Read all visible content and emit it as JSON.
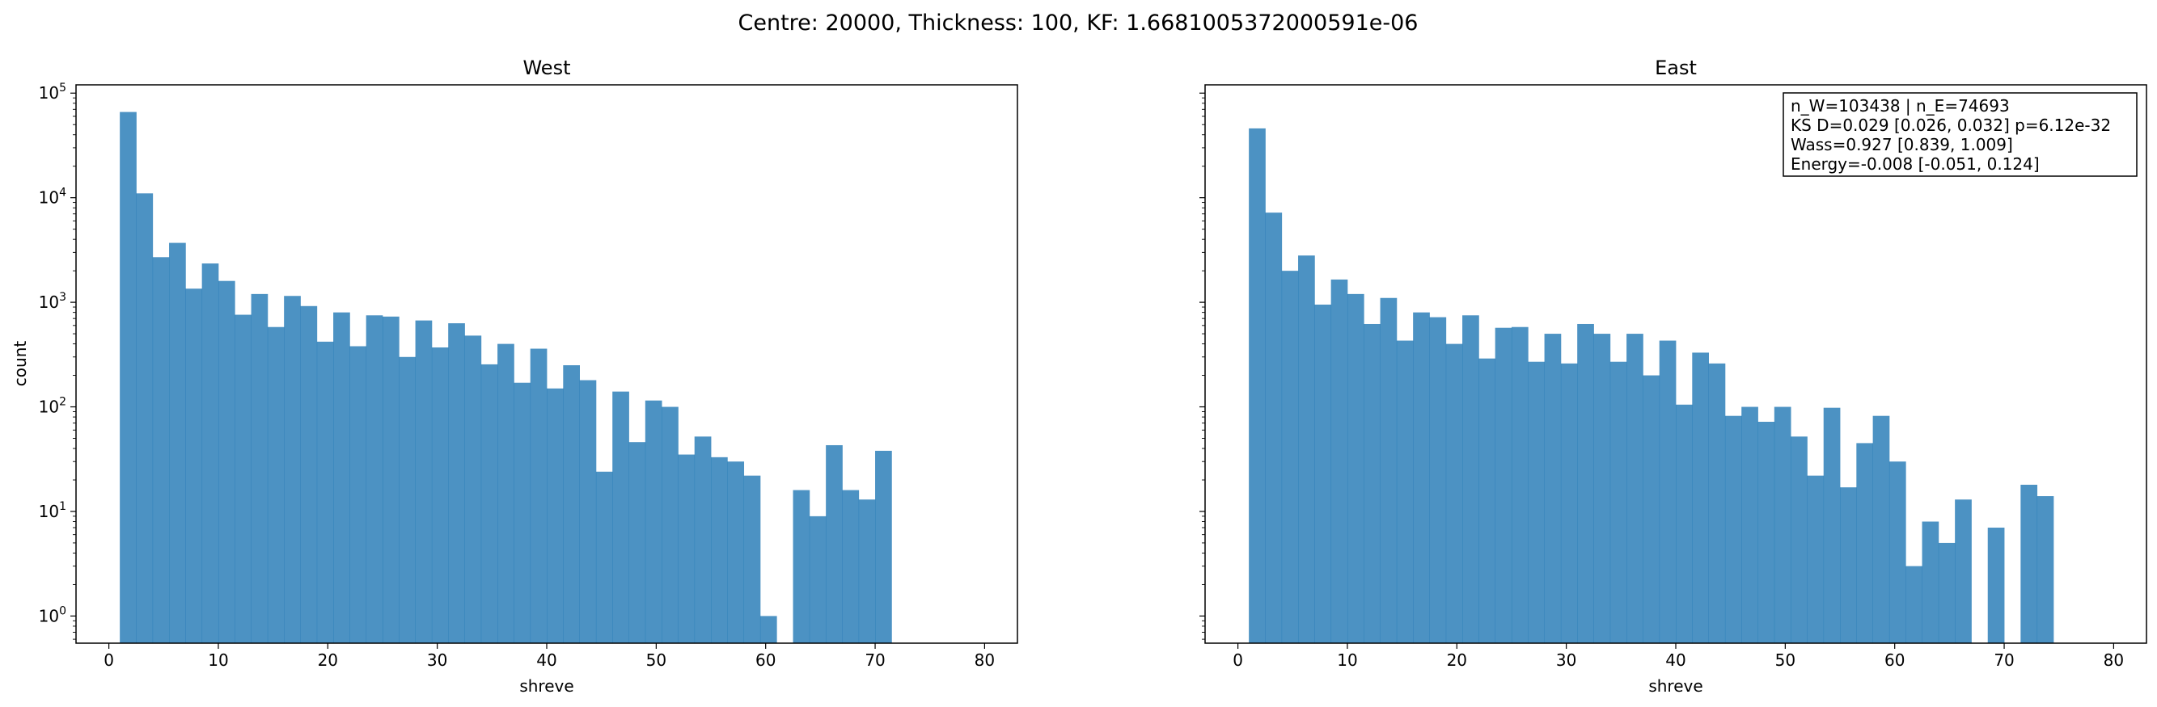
{
  "suptitle": "Centre: 20000, Thickness: 100, KF: 1.6681005372000591e-06",
  "chart_data": [
    {
      "type": "bar",
      "title": "West",
      "xlabel": "shreve",
      "ylabel": "count",
      "yscale": "log",
      "xlim": [
        -3,
        83
      ],
      "ylim": [
        0.55,
        120000
      ],
      "bar_color": "#1f77b4",
      "bin_start": 1,
      "bin_width": 1.5,
      "x_ticks": [
        {
          "value": 0,
          "label": "0"
        },
        {
          "value": 10,
          "label": "10"
        },
        {
          "value": 20,
          "label": "20"
        },
        {
          "value": 30,
          "label": "30"
        },
        {
          "value": 40,
          "label": "40"
        },
        {
          "value": 50,
          "label": "50"
        },
        {
          "value": 60,
          "label": "60"
        },
        {
          "value": 70,
          "label": "70"
        },
        {
          "value": 80,
          "label": "80"
        }
      ],
      "y_ticks": [
        {
          "value": 1,
          "base": "10",
          "exp": "0"
        },
        {
          "value": 10,
          "base": "10",
          "exp": "1"
        },
        {
          "value": 100,
          "base": "10",
          "exp": "2"
        },
        {
          "value": 1000,
          "base": "10",
          "exp": "3"
        },
        {
          "value": 10000,
          "base": "10",
          "exp": "4"
        },
        {
          "value": 100000,
          "base": "10",
          "exp": "5"
        }
      ],
      "values": [
        66000,
        11000,
        2700,
        3700,
        1350,
        2350,
        1600,
        760,
        1200,
        580,
        1150,
        920,
        420,
        800,
        380,
        750,
        730,
        300,
        670,
        370,
        630,
        480,
        255,
        400,
        170,
        360,
        150,
        250,
        180,
        24,
        140,
        46,
        115,
        100,
        35,
        52,
        33,
        30,
        22,
        1,
        0,
        16,
        9,
        43,
        16,
        13,
        38
      ]
    },
    {
      "type": "bar",
      "title": "East",
      "xlabel": "shreve",
      "ylabel": "",
      "yscale": "log",
      "xlim": [
        -3,
        83
      ],
      "ylim": [
        0.55,
        120000
      ],
      "bar_color": "#1f77b4",
      "bin_start": 1,
      "bin_width": 1.5,
      "x_ticks": [
        {
          "value": 0,
          "label": "0"
        },
        {
          "value": 10,
          "label": "10"
        },
        {
          "value": 20,
          "label": "20"
        },
        {
          "value": 30,
          "label": "30"
        },
        {
          "value": 40,
          "label": "40"
        },
        {
          "value": 50,
          "label": "50"
        },
        {
          "value": 60,
          "label": "60"
        },
        {
          "value": 70,
          "label": "70"
        },
        {
          "value": 80,
          "label": "80"
        }
      ],
      "y_ticks": [],
      "values": [
        46000,
        7200,
        2000,
        2800,
        950,
        1650,
        1200,
        620,
        1100,
        430,
        800,
        720,
        400,
        750,
        290,
        570,
        580,
        270,
        500,
        260,
        620,
        500,
        270,
        500,
        200,
        430,
        105,
        330,
        260,
        82,
        100,
        72,
        100,
        52,
        22,
        98,
        17,
        45,
        82,
        30,
        3,
        8,
        5,
        13,
        0,
        7,
        0,
        18,
        14
      ],
      "stats": [
        "n_W=103438 | n_E=74693",
        "KS D=0.029 [0.026, 0.032]  p=6.12e-32",
        "Wass=0.927 [0.839, 1.009]",
        "Energy=-0.008 [-0.051, 0.124]"
      ]
    }
  ]
}
